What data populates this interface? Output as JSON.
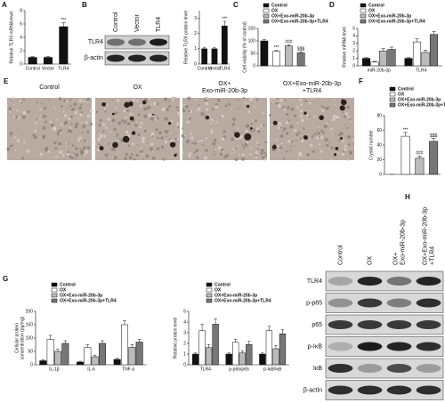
{
  "panel_labels": [
    "A",
    "B",
    "C",
    "D",
    "E",
    "F",
    "G",
    "H"
  ],
  "blot_b": {
    "lanes": [
      "Control",
      "Vector",
      "TLR4"
    ],
    "rows": [
      "TLR4",
      "β-actin"
    ]
  },
  "micrographs": {
    "labels": [
      [
        "Control"
      ],
      [
        "OX"
      ],
      [
        "OX+",
        "Exo-miR-20b-3p"
      ],
      [
        "OX+Exo-miR-20b-3p",
        "+TLR4"
      ]
    ]
  },
  "blot_h": {
    "lanes": [
      [
        "Control"
      ],
      [
        "OX"
      ],
      [
        "OX+",
        "Exo-miR-20b-3p"
      ],
      [
        "OX+Exo-miR-20b-3p",
        "+TLR4"
      ]
    ],
    "rows": [
      "TLR4",
      "p-p65",
      "p65",
      "p-IκB",
      "IκB",
      "β-actin"
    ]
  },
  "chart_data": [
    {
      "type": "bar",
      "ylabel": [
        "Relative TLR4 mRNA level"
      ],
      "categories": [
        "Control",
        "Vector",
        "TLR4"
      ],
      "values": [
        1,
        1,
        5.6
      ],
      "errors": [
        0.1,
        0.1,
        0.6
      ],
      "color": "#111111",
      "ylim": [
        0,
        8
      ],
      "yticks": [
        0,
        2,
        4,
        6,
        8
      ],
      "annotations": [
        {
          "text": "***",
          "category": "TLR4"
        }
      ]
    },
    {
      "type": "bar",
      "ylabel": [
        "Relative TLR4 protein level"
      ],
      "categories": [
        "Control",
        "Vector",
        "TLR4"
      ],
      "values": [
        1,
        1,
        2.5
      ],
      "errors": [
        0.1,
        0.1,
        0.3
      ],
      "color": "#111111",
      "ylim": [
        0,
        3.5
      ],
      "yticks": [
        0,
        1,
        2,
        3
      ],
      "annotations": [
        {
          "text": "***",
          "category": "TLR4"
        }
      ]
    },
    {
      "type": "bar",
      "ylabel": [
        "Cell viability (% of control)"
      ],
      "ylim": [
        0,
        150
      ],
      "yticks": [
        0,
        50,
        100,
        150
      ],
      "legend": "top",
      "series": [
        {
          "name": "Control",
          "color": "#111111",
          "values": [
            100
          ],
          "errors": [
            5
          ]
        },
        {
          "name": "OX",
          "color": "#ffffff",
          "values": [
            58
          ],
          "errors": [
            4
          ]
        },
        {
          "name": "OX+Exo-miR-20b-3p",
          "color": "#bbbbbb",
          "values": [
            80
          ],
          "errors": [
            5
          ]
        },
        {
          "name": "OX+Exo-miR-20b-3p+TLR4",
          "color": "#777777",
          "values": [
            52
          ],
          "errors": [
            5
          ]
        }
      ],
      "annotations": [
        {
          "text": "***",
          "series": "OX"
        },
        {
          "text": "###",
          "series": "OX+Exo-miR-20b-3p"
        },
        {
          "text": "$$$",
          "series": "OX+Exo-miR-20b-3p+TLR4"
        }
      ]
    },
    {
      "type": "bar",
      "ylabel": [
        "Relative mRNA level"
      ],
      "categories": [
        "miR-20b-3p",
        "TLR4"
      ],
      "ylim": [
        0,
        5
      ],
      "yticks": [
        0,
        1,
        2,
        3,
        4,
        5
      ],
      "legend": "top",
      "series": [
        {
          "name": "Control",
          "color": "#111111",
          "values": [
            1,
            1
          ],
          "errors": [
            0.1,
            0.1
          ]
        },
        {
          "name": "OX",
          "color": "#ffffff",
          "values": [
            0.5,
            3.2
          ],
          "errors": [
            0.1,
            0.4
          ]
        },
        {
          "name": "OX+Exo-miR-20b-3p",
          "color": "#bbbbbb",
          "values": [
            2,
            1.8
          ],
          "errors": [
            0.3,
            0.3
          ]
        },
        {
          "name": "OX+Exo-miR-20b-3p+TLR4",
          "color": "#777777",
          "values": [
            2.2,
            4.2
          ],
          "errors": [
            0.3,
            0.4
          ]
        }
      ]
    },
    {
      "type": "bar",
      "ylabel": [
        "Crystal number"
      ],
      "ylim": [
        0,
        80
      ],
      "yticks": [
        0,
        20,
        40,
        60,
        80
      ],
      "legend": "top",
      "series": [
        {
          "name": "Control",
          "color": "#111111",
          "values": [
            0
          ],
          "errors": [
            0
          ]
        },
        {
          "name": "OX",
          "color": "#ffffff",
          "values": [
            52
          ],
          "errors": [
            5
          ]
        },
        {
          "name": "OX+Exo-miR-20b-3p",
          "color": "#bbbbbb",
          "values": [
            22
          ],
          "errors": [
            3
          ]
        },
        {
          "name": "OX+Exo-miR-20b-3p+TLR4",
          "color": "#777777",
          "values": [
            45
          ],
          "errors": [
            4
          ]
        }
      ],
      "annotations": [
        {
          "text": "***",
          "series": "OX"
        },
        {
          "text": "###",
          "series": "OX+Exo-miR-20b-3p"
        },
        {
          "text": "$$$",
          "series": "OX+Exo-miR-20b-3p+TLR4"
        }
      ]
    },
    {
      "type": "bar",
      "ylabel": [
        "Cellular protein",
        "concentration (pg/mg)"
      ],
      "categories": [
        "IL-1β",
        "IL-6",
        "TNF-α"
      ],
      "ylim": [
        0,
        200
      ],
      "yticks": [
        0,
        50,
        100,
        150,
        200
      ],
      "legend": "top",
      "series": [
        {
          "name": "Control",
          "color": "#111111",
          "values": [
            15,
            10,
            20
          ],
          "errors": [
            3,
            3,
            4
          ]
        },
        {
          "name": "OX",
          "color": "#ffffff",
          "values": [
            95,
            65,
            150
          ],
          "errors": [
            15,
            10,
            15
          ]
        },
        {
          "name": "OX+Exo-miR-20b-3p",
          "color": "#bbbbbb",
          "values": [
            50,
            30,
            65
          ],
          "errors": [
            8,
            6,
            10
          ]
        },
        {
          "name": "OX+Exo-miR-20b-3p+TLR4",
          "color": "#777777",
          "values": [
            80,
            80,
            85
          ],
          "errors": [
            10,
            10,
            10
          ]
        }
      ]
    },
    {
      "type": "bar",
      "ylabel": [
        "Relative protein level"
      ],
      "categories": [
        "TLR4",
        "p-p65/p65",
        "p-IκB/IκB"
      ],
      "ylim": [
        0,
        5
      ],
      "yticks": [
        0,
        1,
        2,
        3,
        4,
        5
      ],
      "legend": "top",
      "series": [
        {
          "name": "Control",
          "color": "#111111",
          "values": [
            1,
            1,
            1
          ],
          "errors": [
            0.1,
            0.1,
            0.1
          ]
        },
        {
          "name": "OX",
          "color": "#ffffff",
          "values": [
            3.2,
            2.1,
            3.2
          ],
          "errors": [
            0.6,
            0.3,
            0.4
          ]
        },
        {
          "name": "OX+Exo-miR-20b-3p",
          "color": "#bbbbbb",
          "values": [
            1.6,
            1.1,
            1.5
          ],
          "errors": [
            0.3,
            0.2,
            0.3
          ]
        },
        {
          "name": "OX+Exo-miR-20b-3p+TLR4",
          "color": "#777777",
          "values": [
            3.8,
            1.9,
            2.9
          ],
          "errors": [
            0.5,
            0.3,
            0.4
          ]
        }
      ]
    }
  ]
}
